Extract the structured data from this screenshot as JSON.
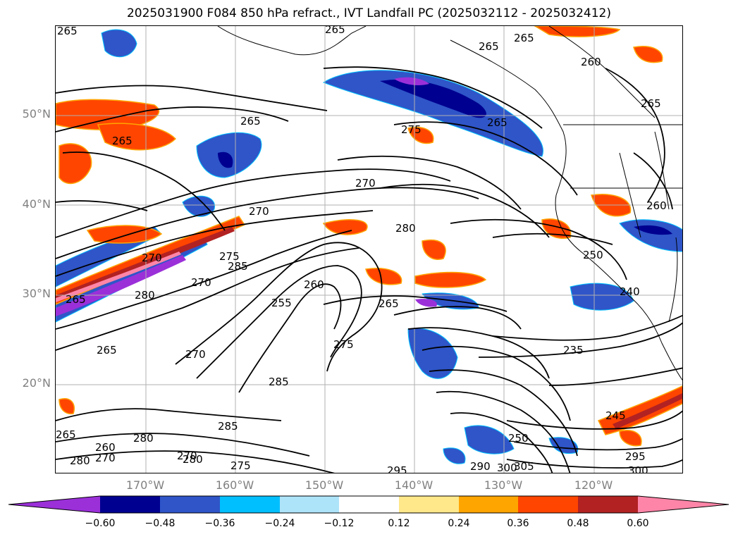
{
  "title": "2025031900 F084 850 hPa refract., IVT Landfall PC (2025032112 - 2025032412)",
  "lat_labels": [
    "50°N",
    "40°N",
    "30°N",
    "20°N"
  ],
  "lon_labels": [
    "170°W",
    "160°W",
    "150°W",
    "140°W",
    "130°W",
    "120°W"
  ],
  "colorbar": {
    "ticks": [
      "−0.60",
      "−0.48",
      "−0.36",
      "−0.24",
      "−0.12",
      "0.12",
      "0.24",
      "0.36",
      "0.48",
      "0.60"
    ],
    "colors": [
      "#9b30d9",
      "#000090",
      "#2f55c8",
      "#00bfff",
      "#aee4fa",
      "#ffffff",
      "#ffe88a",
      "#ffa500",
      "#ff4500",
      "#b22222",
      "#ff85a8"
    ]
  },
  "contour_labels": {
    "l1": "265",
    "l2": "265",
    "l3": "265",
    "l4": "260",
    "l5": "265",
    "l6": "265",
    "l7": "265",
    "l8": "265",
    "l9": "275",
    "l10": "265",
    "l11": "270",
    "l12": "270",
    "l13": "280",
    "l14": "270",
    "l15": "275",
    "l16": "285",
    "l17": "260",
    "l18": "255",
    "l19": "265",
    "l20": "270",
    "l21": "265",
    "l22": "280",
    "l23": "265",
    "l24": "275",
    "l25": "285",
    "l26": "270",
    "l27": "235",
    "l28": "245",
    "l29": "250",
    "l30": "295",
    "l31": "300",
    "l32": "285",
    "l33": "280",
    "l34": "260",
    "l35": "270",
    "l36": "275",
    "l37": "295",
    "l38": "290",
    "l39": "300",
    "l40": "305",
    "l41": "265",
    "l42": "280",
    "l43": "260",
    "l44": "250",
    "l45": "240",
    "l46": "280",
    "l47": "270"
  }
}
